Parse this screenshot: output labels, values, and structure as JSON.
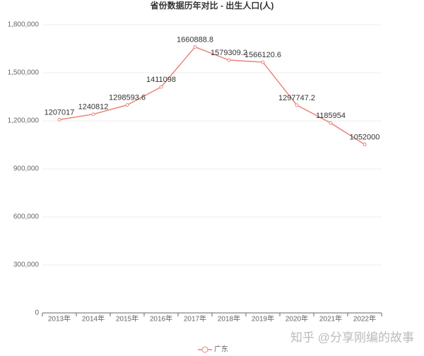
{
  "chart_data": {
    "type": "line",
    "title": "省份数据历年对比 - 出生人口(人)",
    "categories": [
      "2013年",
      "2014年",
      "2015年",
      "2016年",
      "2017年",
      "2018年",
      "2019年",
      "2020年",
      "2021年",
      "2022年"
    ],
    "series": [
      {
        "name": "广东",
        "color": "#e8867c",
        "values": [
          1207017,
          1240812,
          1298593.6,
          1411098,
          1660888.8,
          1579309.2,
          1566120.6,
          1297747.2,
          1185954,
          1052000
        ]
      }
    ],
    "ylim": [
      0,
      1800000
    ],
    "yticks": [
      0,
      {
        "value": 300000,
        "label": "300,000"
      },
      {
        "value": 600000,
        "label": "600,000"
      },
      {
        "value": 900000,
        "label": "900,000"
      },
      {
        "value": 1200000,
        "label": "1,200,000"
      },
      {
        "value": 1500000,
        "label": "1,500,000"
      },
      {
        "value": 1800000,
        "label": "1,800,000"
      }
    ],
    "grid": true,
    "legend": "bottom",
    "watermark": "知乎 @分享刚编的故事"
  }
}
